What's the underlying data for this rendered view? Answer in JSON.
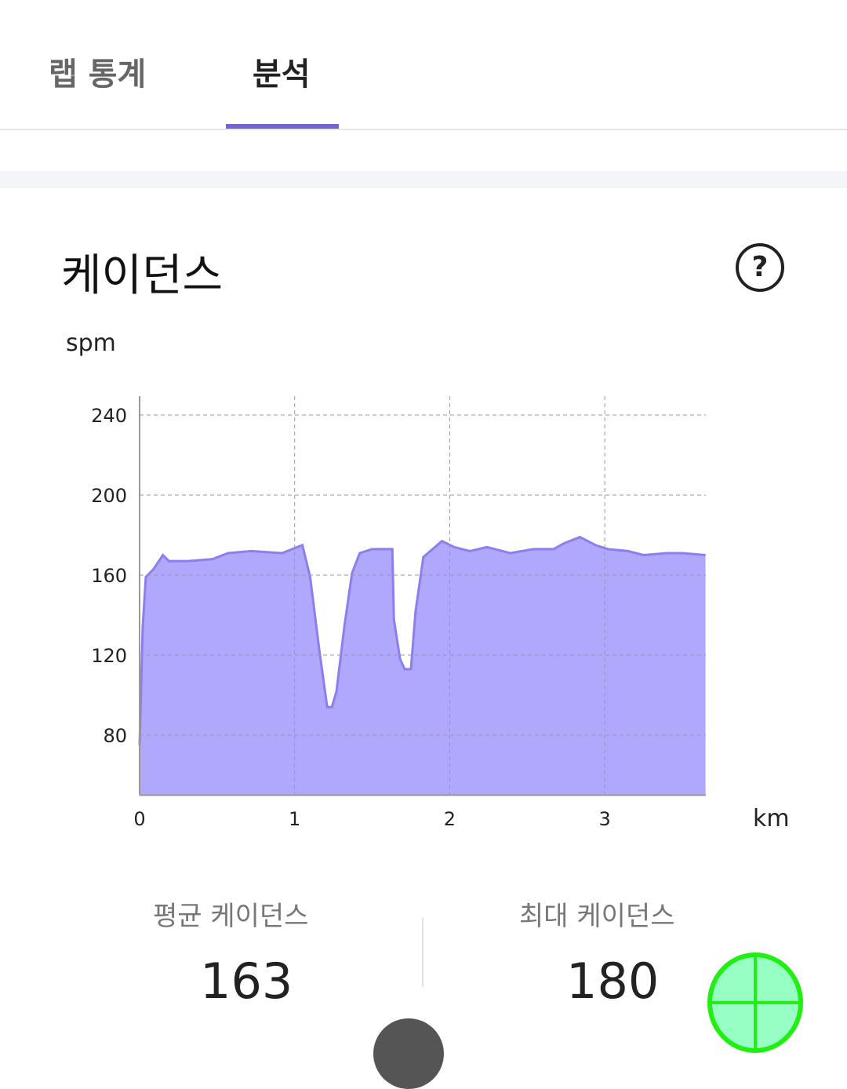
{
  "tabs": [
    {
      "label": "랩 통계",
      "active": false
    },
    {
      "label": "분석",
      "active": true
    }
  ],
  "accent": "#7266cc",
  "section": {
    "title": "케이던스",
    "help_icon": "question-circle-icon"
  },
  "chart_data": {
    "type": "area",
    "ylabel": "spm",
    "xlabel": "km",
    "ylim": [
      50,
      250
    ],
    "xlim": [
      0,
      3.65
    ],
    "yticks": [
      80,
      120,
      160,
      200,
      240
    ],
    "xticks": [
      0,
      1,
      2,
      3
    ],
    "grid": true,
    "fill_color": "#b0a8fd",
    "line_color": "#8b7ff0",
    "x": [
      0,
      0.02,
      0.04,
      0.09,
      0.15,
      0.19,
      0.31,
      0.47,
      0.57,
      0.72,
      0.92,
      1.05,
      1.1,
      1.16,
      1.21,
      1.24,
      1.27,
      1.32,
      1.37,
      1.42,
      1.5,
      1.63,
      1.64,
      1.68,
      1.71,
      1.75,
      1.78,
      1.83,
      1.95,
      2.03,
      2.13,
      2.24,
      2.39,
      2.54,
      2.67,
      2.74,
      2.84,
      2.94,
      3.02,
      3.15,
      3.25,
      3.4,
      3.5,
      3.65
    ],
    "y": [
      75,
      134,
      159,
      163,
      170,
      167,
      167,
      168,
      171,
      172,
      171,
      175,
      159,
      122,
      94,
      94,
      102,
      134,
      161,
      171,
      173,
      173,
      138,
      118,
      113,
      113,
      142,
      169,
      177,
      174,
      172,
      174,
      171,
      173,
      173,
      176,
      179,
      175,
      173,
      172,
      170,
      171,
      171,
      170
    ]
  },
  "stats": [
    {
      "label": "평균 케이던스",
      "value": "163"
    },
    {
      "label": "최대 케이던스",
      "value": "180"
    }
  ]
}
